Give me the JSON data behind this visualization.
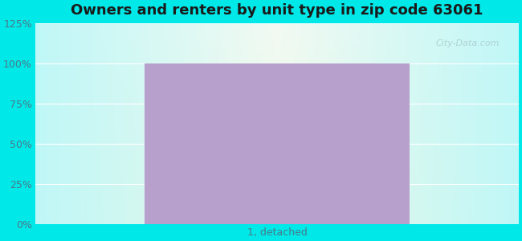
{
  "title": "Owners and renters by unit type in zip code 63061",
  "categories": [
    "1, detached"
  ],
  "values": [
    100
  ],
  "bar_color": "#b8a0cc",
  "bar_width": 0.55,
  "ylim": [
    0,
    125
  ],
  "yticks": [
    0,
    25,
    50,
    75,
    100,
    125
  ],
  "ytick_labels": [
    "0%",
    "25%",
    "50%",
    "75%",
    "100%",
    "125%"
  ],
  "title_fontsize": 13,
  "tick_fontsize": 9,
  "bg_outer_color": "#00e8e8",
  "watermark": "City-Data.com",
  "fig_width": 6.5,
  "fig_height": 3.0,
  "dpi": 100
}
